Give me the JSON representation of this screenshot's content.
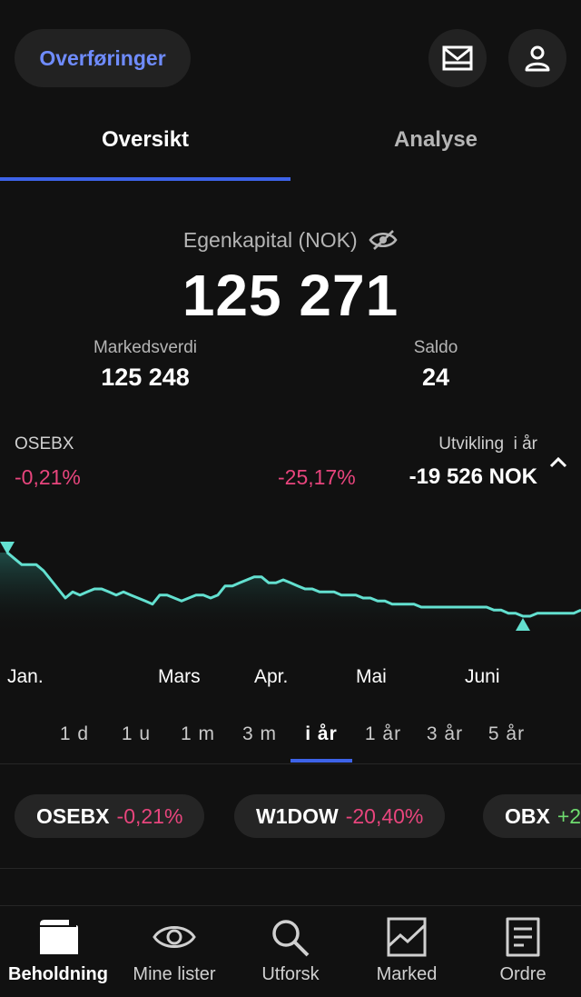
{
  "header": {
    "transfer_label": "Overføringer",
    "mail_icon": "mail-icon",
    "profile_icon": "user-icon"
  },
  "tabs": [
    {
      "label": "Oversikt",
      "active": true
    },
    {
      "label": "Analyse",
      "active": false
    }
  ],
  "summary": {
    "equity_label": "Egenkapital (NOK)",
    "equity_value": "125 271",
    "market_value_label": "Markedsverdi",
    "market_value": "125 248",
    "balance_label": "Saldo",
    "balance": "24"
  },
  "stats": {
    "index_label": "OSEBX",
    "index_change": "-0,21%",
    "portfolio_change": "-25,17%",
    "development_label": "Utvikling  i år",
    "development_value": "-19 526 NOK"
  },
  "chart_data": {
    "type": "area",
    "x_labels": [
      "Jan.",
      "Mars",
      "Apr.",
      "Mai",
      "Juni"
    ],
    "values": [
      100,
      98,
      96,
      96,
      96,
      94,
      91,
      88,
      85,
      87,
      86,
      87,
      88,
      88,
      87,
      86,
      87,
      86,
      85,
      84,
      83,
      86,
      86,
      85,
      84,
      85,
      86,
      86,
      85,
      86,
      89,
      89,
      90,
      91,
      92,
      92,
      90,
      90,
      91,
      90,
      89,
      88,
      88,
      87,
      87,
      87,
      86,
      86,
      86,
      85,
      85,
      84,
      84,
      83,
      83,
      83,
      83,
      82,
      82,
      82,
      82,
      82,
      82,
      82,
      82,
      82,
      82,
      81,
      81,
      80,
      80,
      79,
      79,
      80,
      80,
      80,
      80,
      80,
      80,
      81
    ],
    "line_color": "#63e0d0",
    "markers": [
      {
        "label": "high",
        "index": 0
      },
      {
        "label": "low",
        "index": 71
      }
    ]
  },
  "ranges": [
    {
      "label": "1 d",
      "active": false
    },
    {
      "label": "1 u",
      "active": false
    },
    {
      "label": "1 m",
      "active": false
    },
    {
      "label": "3 m",
      "active": false
    },
    {
      "label": "i år",
      "active": true
    },
    {
      "label": "1 år",
      "active": false
    },
    {
      "label": "3 år",
      "active": false
    },
    {
      "label": "5 år",
      "active": false
    }
  ],
  "indices": [
    {
      "name": "OSEBX",
      "value": "-0,21%",
      "sign": "neg"
    },
    {
      "name": "W1DOW",
      "value": "-20,40%",
      "sign": "neg"
    },
    {
      "name": "OBX",
      "value": "+2",
      "sign": "pos"
    }
  ],
  "nav": [
    {
      "label": "Beholdning",
      "icon": "wallet-icon",
      "active": true
    },
    {
      "label": "Mine lister",
      "icon": "eye-icon",
      "active": false
    },
    {
      "label": "Utforsk",
      "icon": "search-icon",
      "active": false
    },
    {
      "label": "Marked",
      "icon": "chart-icon",
      "active": false
    },
    {
      "label": "Ordre",
      "icon": "document-icon",
      "active": false
    }
  ]
}
